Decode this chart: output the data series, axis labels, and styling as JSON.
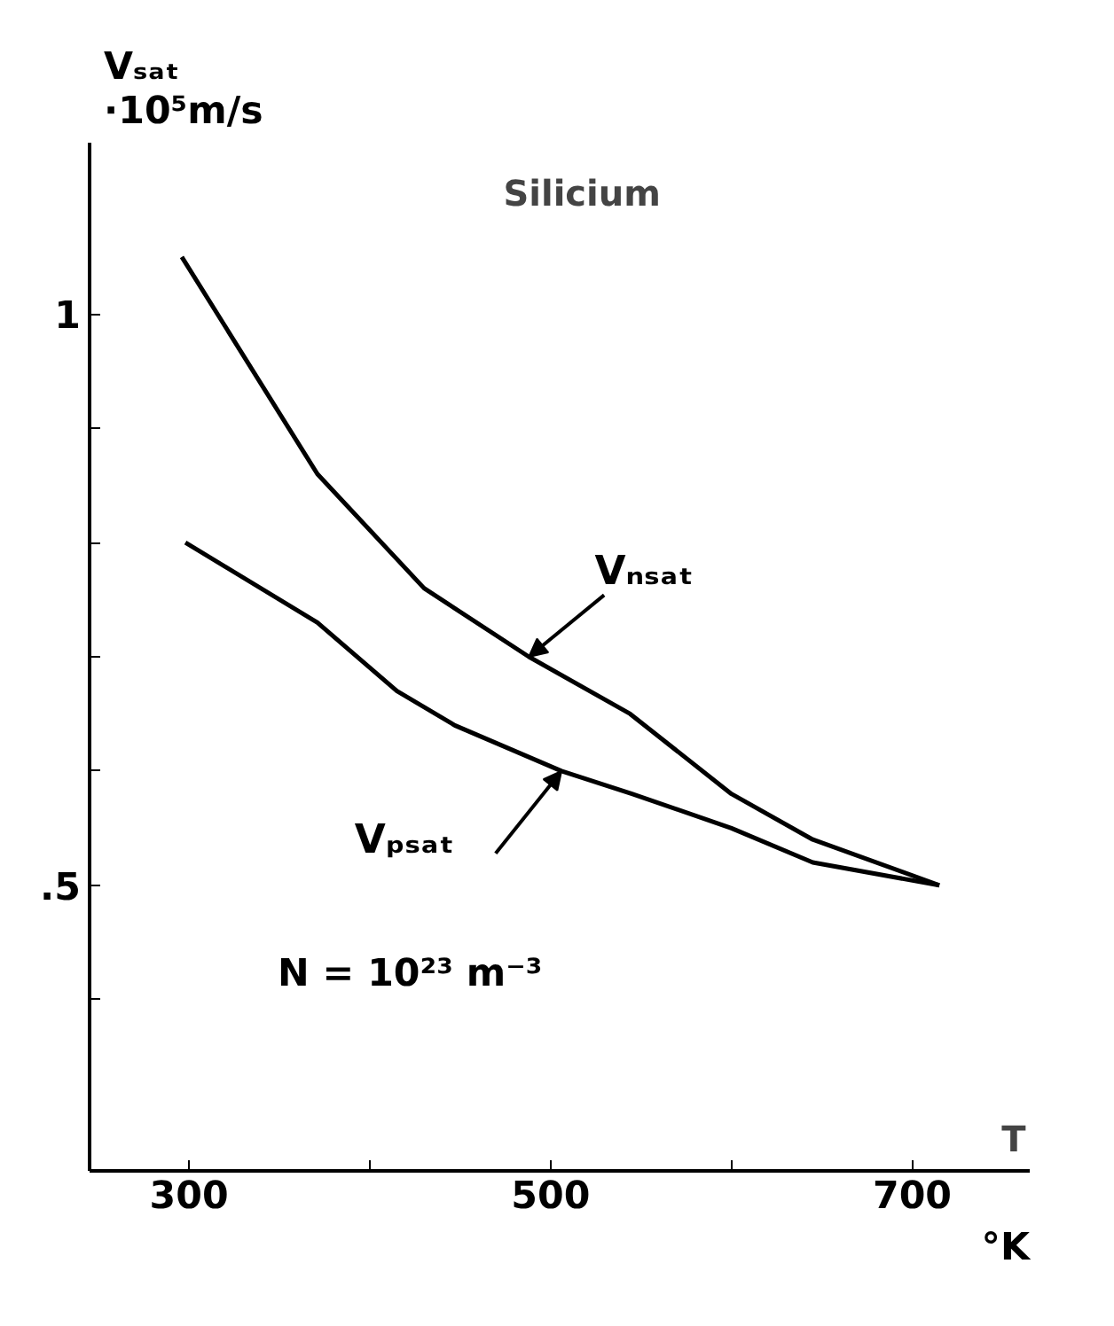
{
  "chart_data": {
    "type": "line",
    "title": "Silicium",
    "xlabel": "T",
    "ylabel": "Vₛₐₜ\n·10⁵m/s",
    "annotations": [
      "N = 10²³ m⁻³",
      "°K"
    ],
    "xlim": [
      245,
      765
    ],
    "xticks": [
      300,
      {
        "value": 400,
        "label": null
      },
      500,
      {
        "value": 600,
        "label": null
      },
      700
    ],
    "ylim": [
      0.25,
      1.15
    ],
    "yticks": [
      {
        "value": 0.4,
        "label": null
      },
      {
        "value": 0.5,
        "label": ".5"
      },
      {
        "value": 0.6,
        "label": null
      },
      {
        "value": 0.7,
        "label": null
      },
      {
        "value": 0.8,
        "label": null
      },
      {
        "value": 0.9,
        "label": null
      },
      1
    ],
    "grid": false,
    "line_style": "solid",
    "marker": "none",
    "series": [
      {
        "name": "Vₙₛₐₜ",
        "color": "#000000",
        "x": [
          296,
          371,
          430,
          488,
          544,
          600,
          645,
          715
        ],
        "values": [
          1.05,
          0.86,
          0.76,
          0.7,
          0.65,
          0.58,
          0.54,
          0.5
        ]
      },
      {
        "name": "Vₚₛₐₜ",
        "color": "#000000",
        "x": [
          298,
          371,
          415,
          447,
          506,
          545,
          600,
          645,
          715
        ],
        "values": [
          0.8,
          0.73,
          0.67,
          0.64,
          0.6,
          0.58,
          0.55,
          0.52,
          0.5
        ]
      }
    ]
  }
}
